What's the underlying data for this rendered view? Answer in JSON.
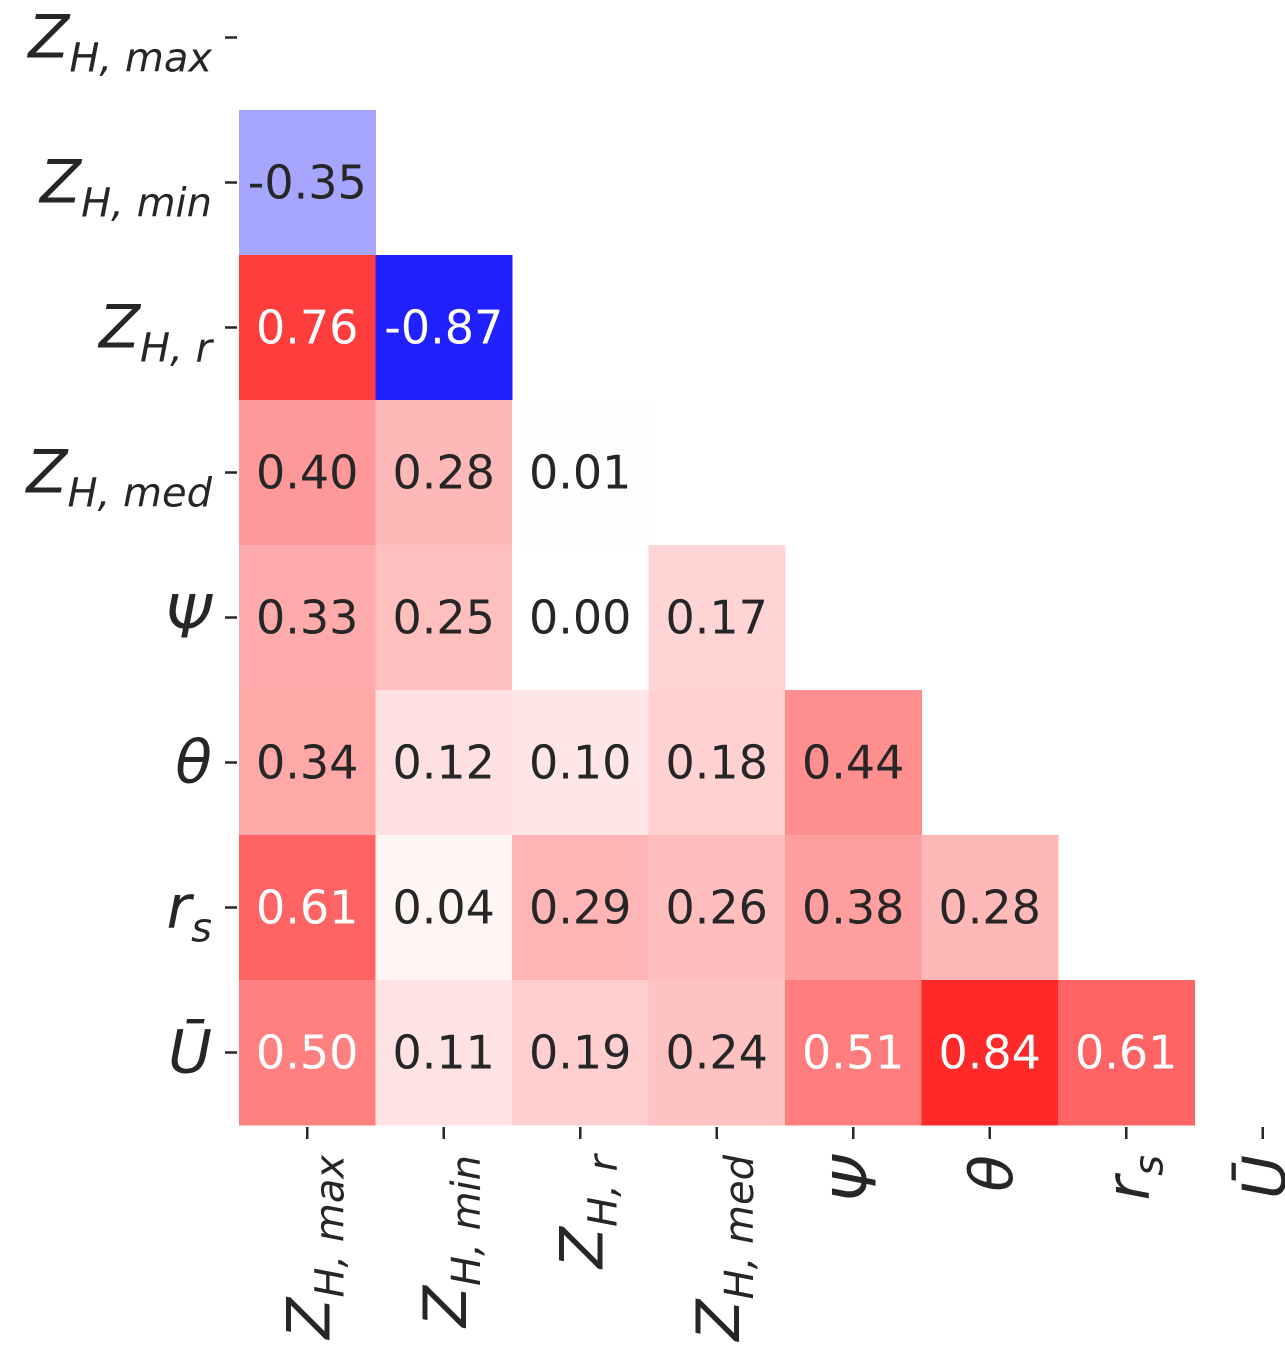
{
  "chart_data": {
    "type": "heatmap",
    "title": "",
    "variables": [
      {
        "id": "zh_max",
        "base": "Z",
        "sub": "H, max"
      },
      {
        "id": "zh_min",
        "base": "Z",
        "sub": "H, min"
      },
      {
        "id": "zh_r",
        "base": "Z",
        "sub": "H, r"
      },
      {
        "id": "zh_med",
        "base": "Z",
        "sub": "H, med"
      },
      {
        "id": "psi",
        "base": "Ψ",
        "sub": ""
      },
      {
        "id": "theta",
        "base": "θ",
        "sub": ""
      },
      {
        "id": "rs",
        "base": "r",
        "sub": "s"
      },
      {
        "id": "ubar",
        "base": "Ū",
        "sub": ""
      }
    ],
    "lower_triangle": [
      [],
      [
        -0.35
      ],
      [
        0.76,
        -0.87
      ],
      [
        0.4,
        0.28,
        0.01
      ],
      [
        0.33,
        0.25,
        0.0,
        0.17
      ],
      [
        0.34,
        0.12,
        0.1,
        0.18,
        0.44
      ],
      [
        0.61,
        0.04,
        0.29,
        0.26,
        0.38,
        0.28
      ],
      [
        0.5,
        0.11,
        0.19,
        0.24,
        0.51,
        0.84,
        0.61
      ]
    ],
    "value_format": "2 decimals",
    "colormap": {
      "negative": "#0000ff",
      "zero": "#ffffff",
      "positive": "#ff0000",
      "vmin": -1,
      "vmax": 1
    },
    "mask": "upper triangle and diagonal",
    "colorbar": false,
    "grid": false
  }
}
